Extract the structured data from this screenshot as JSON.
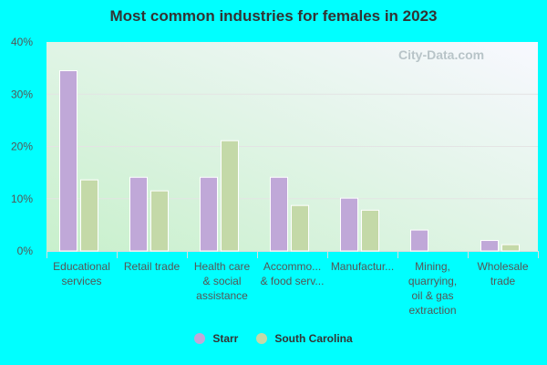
{
  "chart_data": {
    "type": "bar",
    "title": "Most common industries for females in 2023",
    "categories": [
      [
        "Educational",
        "services"
      ],
      [
        "Retail trade"
      ],
      [
        "Health care",
        "& social",
        "assistance"
      ],
      [
        "Accommo...",
        "& food serv..."
      ],
      [
        "Manufactur..."
      ],
      [
        "Mining,",
        "quarrying,",
        "oil & gas",
        "extraction"
      ],
      [
        "Wholesale",
        "trade"
      ]
    ],
    "series": [
      {
        "name": "Starr",
        "color": "#c0a8d8",
        "values": [
          34.5,
          14.1,
          14.1,
          14.1,
          10.1,
          4.0,
          2.0
        ]
      },
      {
        "name": "South Carolina",
        "color": "#c4d9a8",
        "values": [
          13.6,
          11.5,
          21.1,
          8.7,
          7.8,
          0,
          1.2
        ]
      }
    ],
    "ylim": [
      0,
      40
    ],
    "yticks": [
      "0%",
      "10%",
      "20%",
      "30%",
      "40%"
    ],
    "grid": true,
    "legend": "bottom"
  },
  "watermark": "City-Data.com"
}
